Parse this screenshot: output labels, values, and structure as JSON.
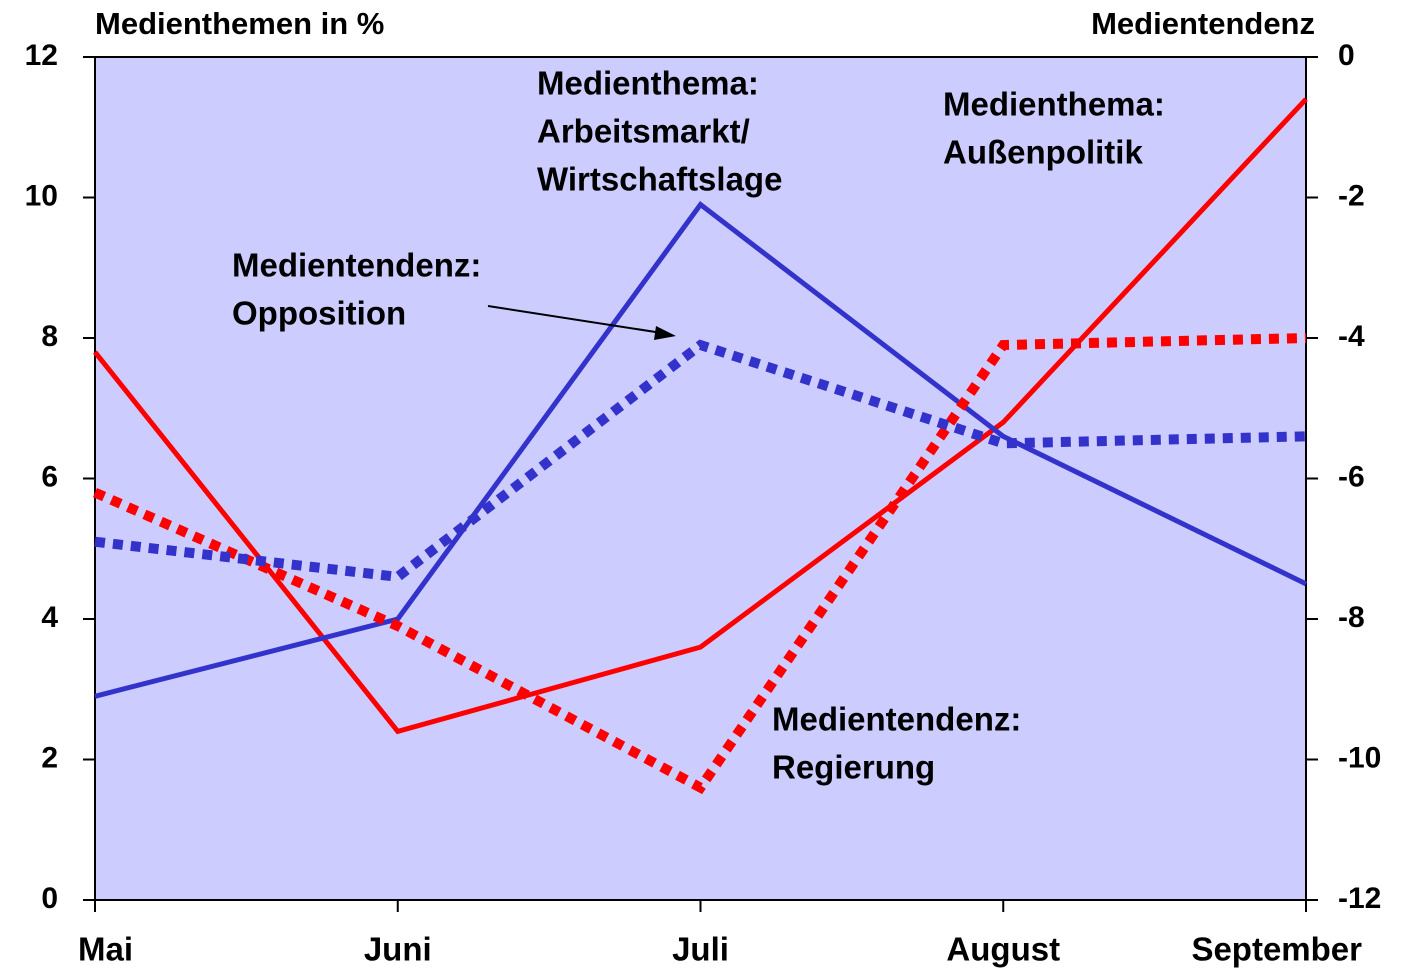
{
  "chart_data": {
    "type": "line",
    "ylabel": "Medienthemen in %",
    "y2label": "Medientendenz",
    "categories": [
      "Mai",
      "Juni",
      "Juli",
      "August",
      "September"
    ],
    "ylim": [
      0,
      12
    ],
    "yticks": [
      0,
      2,
      4,
      6,
      8,
      10,
      12
    ],
    "y2lim": [
      -12,
      0
    ],
    "y2ticks": [
      -12,
      -10,
      -8,
      -6,
      -4,
      -2,
      0
    ],
    "background": "#ccccff",
    "series": [
      {
        "color": "#ff0000",
        "style": "solid",
        "axis": "y",
        "values": [
          7.8,
          2.4,
          3.6,
          6.8,
          11.4
        ]
      },
      {
        "color": "#3333cc",
        "style": "solid",
        "axis": "y",
        "values": [
          2.9,
          4.0,
          9.9,
          6.6,
          4.5
        ]
      },
      {
        "color": "#ff0000",
        "style": "dotted",
        "axis": "y2",
        "values": [
          -6.2,
          -8.1,
          -10.4,
          -4.1,
          -4.0
        ]
      },
      {
        "color": "#3333cc",
        "style": "dotted",
        "axis": "y2",
        "values": [
          -6.9,
          -7.4,
          -4.1,
          -5.5,
          -5.4
        ]
      }
    ],
    "annotations": [
      {
        "lines": [
          "Medienthema:",
          "Arbeitsmarkt/",
          "Wirtschaftslage"
        ]
      },
      {
        "lines": [
          "Medienthema:",
          "Außenpolitik"
        ]
      },
      {
        "lines": [
          "Medientendenz:",
          "Opposition"
        ]
      },
      {
        "lines": [
          "Medientendenz:",
          "Regierung"
        ]
      }
    ]
  }
}
